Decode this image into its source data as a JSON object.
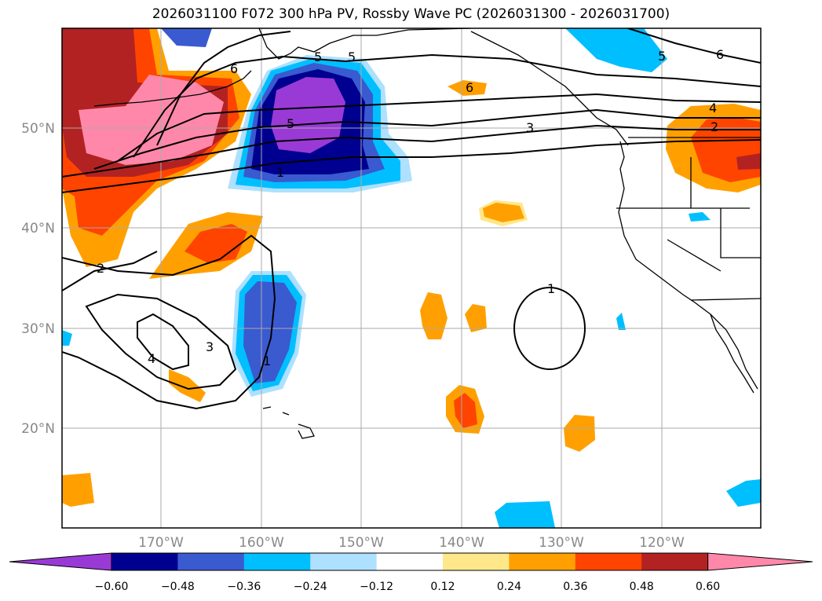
{
  "title": "2026031100 F072 300 hPa PV, Rossby Wave PC (2026031300 - 2026031700)",
  "map": {
    "lat_labels": [
      "50°N",
      "40°N",
      "30°N",
      "20°N"
    ],
    "lon_labels": [
      "170°W",
      "160°W",
      "150°W",
      "140°W",
      "130°W",
      "120°W"
    ],
    "contour_labels": {
      "c6_a": "6",
      "c5_a": "5",
      "c6_b": "6",
      "c5_b": "5",
      "c6_c": "6",
      "c5_c": "5",
      "c4_a": "4",
      "c3_a": "3",
      "c2_a": "2",
      "c1_a": "1",
      "c2_b": "2",
      "c3_b": "3",
      "c4_b": "4",
      "c1_b": "1",
      "c1_c": "1"
    }
  },
  "colorbar": {
    "tick_labels": [
      "−0.60",
      "−0.48",
      "−0.36",
      "−0.24",
      "−0.12",
      "0.12",
      "0.24",
      "0.36",
      "0.48",
      "0.60"
    ],
    "colors": [
      "#9a3ad6",
      "#000090",
      "#3a5ad0",
      "#00bfff",
      "#aee0ff",
      "#ffffff",
      "#ffe88a",
      "#ffa000",
      "#ff4400",
      "#b22222",
      "#ff88aa"
    ]
  }
}
